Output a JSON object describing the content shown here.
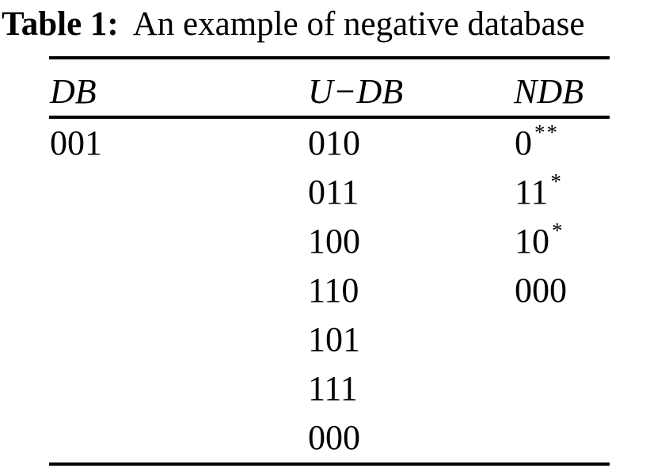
{
  "caption": {
    "label": "Table 1:",
    "text": "An example of negative database"
  },
  "table": {
    "columns": [
      {
        "key": "db",
        "label": "DB"
      },
      {
        "key": "udb",
        "label": "U−DB"
      },
      {
        "key": "ndb",
        "label": "NDB"
      }
    ],
    "rows": [
      {
        "db": "001",
        "udb": "010",
        "ndb_base": "0",
        "ndb_sup": "**"
      },
      {
        "db": "",
        "udb": "011",
        "ndb_base": "11",
        "ndb_sup": "*"
      },
      {
        "db": "",
        "udb": "100",
        "ndb_base": "10",
        "ndb_sup": "*"
      },
      {
        "db": "",
        "udb": "110",
        "ndb_base": "000",
        "ndb_sup": ""
      },
      {
        "db": "",
        "udb": "101",
        "ndb_base": "",
        "ndb_sup": ""
      },
      {
        "db": "",
        "udb": "111",
        "ndb_base": "",
        "ndb_sup": ""
      },
      {
        "db": "",
        "udb": "000",
        "ndb_base": "",
        "ndb_sup": ""
      }
    ]
  },
  "chart_data": {
    "type": "table",
    "title": "Table 1: An example of negative database",
    "columns": [
      "DB",
      "U−DB",
      "NDB"
    ],
    "rows": [
      [
        "001",
        "010",
        "0**"
      ],
      [
        "",
        "011",
        "11*"
      ],
      [
        "",
        "100",
        "10*"
      ],
      [
        "",
        "110",
        "000"
      ],
      [
        "",
        "101",
        ""
      ],
      [
        "",
        "111",
        ""
      ],
      [
        "",
        "000",
        ""
      ]
    ]
  }
}
